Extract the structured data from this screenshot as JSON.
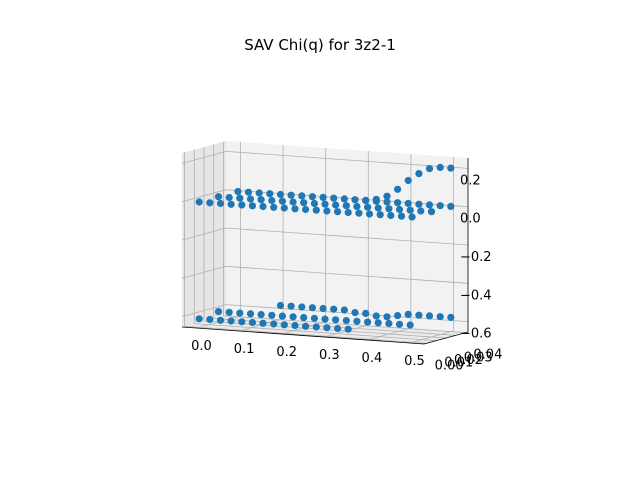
{
  "figure": {
    "title": "SAV Chi(q) for 3z2-1"
  },
  "chart_data": {
    "type": "scatter",
    "projection": "3d",
    "title": "SAV Chi(q) for 3z2-1",
    "xlabel": "",
    "ylabel": "",
    "zlabel": "",
    "xlim": [
      0.0,
      0.5
    ],
    "ylim": [
      0.0,
      0.04
    ],
    "zlim": [
      -0.6,
      0.2
    ],
    "x_ticks": [
      "0.0",
      "0.1",
      "0.2",
      "0.3",
      "0.4",
      "0.5"
    ],
    "y_ticks": [
      "0.00",
      "0.01",
      "0.02",
      "0.03",
      "0.04"
    ],
    "z_ticks": [
      "−0.6",
      "−0.4",
      "−0.2",
      "0.0",
      "0.2"
    ],
    "grid": true,
    "color": "#1f77b4",
    "series": [
      {
        "x": [
          0.0,
          0.025,
          0.05,
          0.075,
          0.1,
          0.125,
          0.15,
          0.175,
          0.2,
          0.225,
          0.25,
          0.275,
          0.3,
          0.325,
          0.35,
          0.375,
          0.4,
          0.425,
          0.45,
          0.475,
          0.5
        ],
        "y": [
          0.0,
          0.0,
          0.0,
          0.0,
          0.0,
          0.0,
          0.0,
          0.0,
          0.0,
          0.0,
          0.0,
          0.0,
          0.0,
          0.0,
          0.0,
          0.0,
          0.0,
          0.0,
          0.0,
          0.0,
          0.0
        ],
        "z": [
          0.0,
          0.0,
          0.0,
          0.0,
          0.0,
          0.0,
          0.0,
          0.0,
          0.0,
          0.0,
          0.0,
          0.0,
          0.0,
          0.0,
          0.0,
          0.0,
          0.0,
          0.0,
          0.0,
          0.0,
          0.0
        ]
      },
      {
        "x": [
          0.0,
          0.025,
          0.05,
          0.075,
          0.1,
          0.125,
          0.15,
          0.175,
          0.2,
          0.225,
          0.25,
          0.275,
          0.3,
          0.325,
          0.35,
          0.375,
          0.4,
          0.425,
          0.45,
          0.475,
          0.5
        ],
        "y": [
          0.02,
          0.02,
          0.02,
          0.02,
          0.02,
          0.02,
          0.02,
          0.02,
          0.02,
          0.02,
          0.02,
          0.02,
          0.02,
          0.02,
          0.02,
          0.02,
          0.02,
          0.02,
          0.02,
          0.02,
          0.02
        ],
        "z": [
          0.0,
          0.0,
          0.0,
          0.0,
          0.0,
          0.0,
          0.0,
          0.0,
          0.0,
          0.0,
          0.0,
          0.0,
          0.0,
          0.0,
          0.0,
          0.0,
          0.0,
          0.0,
          0.0,
          0.0,
          0.0
        ]
      },
      {
        "x": [
          0.0,
          0.025,
          0.05,
          0.075,
          0.1,
          0.125,
          0.15,
          0.175,
          0.2,
          0.225,
          0.25,
          0.275,
          0.3,
          0.325,
          0.35,
          0.375,
          0.4,
          0.425,
          0.45,
          0.475,
          0.5
        ],
        "y": [
          0.04,
          0.04,
          0.04,
          0.04,
          0.04,
          0.04,
          0.04,
          0.04,
          0.04,
          0.04,
          0.04,
          0.04,
          0.04,
          0.04,
          0.04,
          0.04,
          0.04,
          0.04,
          0.04,
          0.04,
          0.04
        ],
        "z": [
          0.0,
          0.0,
          0.0,
          0.0,
          0.0,
          0.0,
          0.0,
          0.0,
          0.0,
          0.0,
          0.0,
          0.0,
          0.0,
          0.0,
          0.0,
          0.0,
          0.0,
          0.0,
          0.0,
          0.0,
          0.0
        ]
      },
      {
        "x": [
          0.3,
          0.325,
          0.35,
          0.375,
          0.4,
          0.425,
          0.45,
          0.475,
          0.5
        ],
        "y": [
          0.04,
          0.04,
          0.04,
          0.04,
          0.04,
          0.04,
          0.04,
          0.04,
          0.04
        ],
        "z": [
          0.0,
          0.01,
          0.03,
          0.07,
          0.12,
          0.16,
          0.19,
          0.2,
          0.2
        ]
      },
      {
        "x": [
          0.0,
          0.025,
          0.05,
          0.075,
          0.1,
          0.125,
          0.15,
          0.175,
          0.2,
          0.225,
          0.25,
          0.275,
          0.3,
          0.325,
          0.35
        ],
        "y": [
          0.0,
          0.0,
          0.0,
          0.0,
          0.0,
          0.0,
          0.0,
          0.0,
          0.0,
          0.0,
          0.0,
          0.0,
          0.0,
          0.0,
          0.0
        ],
        "z": [
          -0.61,
          -0.61,
          -0.61,
          -0.61,
          -0.61,
          -0.61,
          -0.61,
          -0.61,
          -0.61,
          -0.61,
          -0.61,
          -0.61,
          -0.61,
          -0.61,
          -0.61
        ]
      },
      {
        "x": [
          0.0,
          0.025,
          0.05,
          0.075,
          0.1,
          0.125,
          0.15,
          0.175,
          0.2,
          0.225,
          0.25,
          0.275,
          0.3,
          0.325,
          0.35,
          0.375,
          0.4,
          0.425,
          0.45
        ],
        "y": [
          0.02,
          0.02,
          0.02,
          0.02,
          0.02,
          0.02,
          0.02,
          0.02,
          0.02,
          0.02,
          0.02,
          0.02,
          0.02,
          0.02,
          0.02,
          0.02,
          0.02,
          0.02,
          0.02
        ],
        "z": [
          -0.6,
          -0.6,
          -0.6,
          -0.6,
          -0.6,
          -0.6,
          -0.6,
          -0.6,
          -0.6,
          -0.6,
          -0.6,
          -0.6,
          -0.6,
          -0.6,
          -0.6,
          -0.6,
          -0.6,
          -0.6,
          -0.6
        ]
      },
      {
        "x": [
          0.1,
          0.125,
          0.15,
          0.175,
          0.2,
          0.225,
          0.25,
          0.275,
          0.3,
          0.325,
          0.35,
          0.375,
          0.4,
          0.425,
          0.45,
          0.475,
          0.5
        ],
        "y": [
          0.04,
          0.04,
          0.04,
          0.04,
          0.04,
          0.04,
          0.04,
          0.04,
          0.04,
          0.04,
          0.04,
          0.04,
          0.04,
          0.04,
          0.04,
          0.04,
          0.04
        ],
        "z": [
          -0.58,
          -0.58,
          -0.58,
          -0.58,
          -0.58,
          -0.58,
          -0.58,
          -0.59,
          -0.59,
          -0.6,
          -0.6,
          -0.59,
          -0.58,
          -0.58,
          -0.58,
          -0.58,
          -0.58
        ]
      }
    ]
  }
}
